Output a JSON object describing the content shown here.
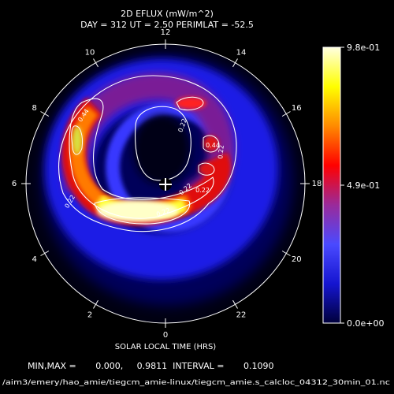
{
  "chart_data": {
    "type": "heatmap",
    "title": "2D EFLUX (mW/m^2)",
    "subtitle": "DAY = 312  UT =  2.50  PERIMLAT = -52.5",
    "xlabel": "SOLAR LOCAL TIME (HRS)",
    "stats_line": "MIN,MAX =       0.000,     0.9811  INTERVAL =       0.1090",
    "source_path": "/aim3/emery/hao_amie/tiegcm_amie-linux/tiegcm_amie.s_calcloc_04312_30min_01.nc",
    "hour_labels": [
      "12",
      "14",
      "16",
      "18",
      "20",
      "22",
      "0",
      "2",
      "4",
      "6",
      "8",
      "10"
    ],
    "colorbar": {
      "min": 0.0,
      "max": 0.98,
      "tick_labels": [
        "9.8e-01",
        "4.9e-01",
        "0.0e+00"
      ],
      "colors": [
        "#00003a",
        "#1515d0",
        "#4a4aff",
        "#9a2a9a",
        "#ff0000",
        "#ff8a00",
        "#ffff00",
        "#ffffe0"
      ]
    },
    "contour_levels": [
      0.22,
      0.44,
      0.65
    ],
    "contour_labels": [
      "0.44",
      "0.22",
      "0.22",
      "0.22",
      "0.22",
      "0.22",
      "0.44",
      "0.22"
    ],
    "blobs": [
      {
        "id": "dusk-arc-bright",
        "mlt": 2.0,
        "colat_frac": 0.42,
        "value": 0.96,
        "sx": 0.32,
        "sy": 0.12
      },
      {
        "id": "dusk-arc-mid",
        "mlt": 4.0,
        "colat_frac": 0.45,
        "value": 0.72,
        "sx": 0.28,
        "sy": 0.14
      },
      {
        "id": "dusk-arc-orange",
        "mlt": 5.5,
        "colat_frac": 0.5,
        "value": 0.58,
        "sx": 0.18,
        "sy": 0.22
      },
      {
        "id": "pre-noon-red",
        "mlt": 8.5,
        "colat_frac": 0.55,
        "value": 0.55,
        "sx": 0.16,
        "sy": 0.24
      },
      {
        "id": "pre-noon-yellow",
        "mlt": 8.0,
        "colat_frac": 0.62,
        "value": 0.7,
        "sx": 0.08,
        "sy": 0.1
      },
      {
        "id": "post-noon-red",
        "mlt": 14.5,
        "colat_frac": 0.45,
        "value": 0.55,
        "sx": 0.12,
        "sy": 0.08
      },
      {
        "id": "afternoon-red",
        "mlt": 16.8,
        "colat_frac": 0.35,
        "value": 0.5,
        "sx": 0.1,
        "sy": 0.1
      },
      {
        "id": "evening-red",
        "mlt": 19.0,
        "colat_frac": 0.25,
        "value": 0.48,
        "sx": 0.1,
        "sy": 0.08
      }
    ]
  }
}
